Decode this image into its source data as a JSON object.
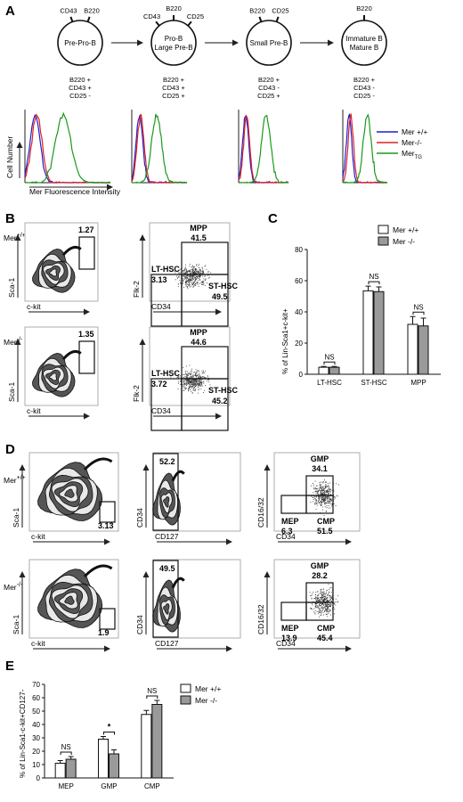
{
  "panelA": {
    "letter": "A",
    "stages": [
      {
        "name_lines": [
          "Pre-Pro-B"
        ],
        "top_markers": [
          "CD43",
          "B220"
        ],
        "phenotype": [
          "B220 +",
          "CD43 +",
          "CD25 -"
        ]
      },
      {
        "name_lines": [
          "Pro-B",
          "Large Pre-B"
        ],
        "top_markers": [
          "CD43",
          "B220",
          "CD25"
        ],
        "phenotype": [
          "B220 +",
          "CD43 +",
          "CD25 +"
        ]
      },
      {
        "name_lines": [
          "Small Pre-B"
        ],
        "top_markers": [
          "B220",
          "CD25"
        ],
        "phenotype": [
          "B220 +",
          "CD43 -",
          "CD25 +"
        ]
      },
      {
        "name_lines": [
          "Immature B",
          "Mature B"
        ],
        "top_markers": [
          "B220"
        ],
        "phenotype": [
          "B220 +",
          "CD43 -",
          "CD25 -"
        ]
      }
    ],
    "ylabel": "Cell Number",
    "xlabel": "Mer Fluorescence Intensity",
    "legend": [
      {
        "label": "Mer +/+",
        "color": "#1f1fd0"
      },
      {
        "label": "Mer-/-",
        "color": "#e02020"
      },
      {
        "label": "Mer",
        "sub": "TG",
        "color": "#1a9a1a"
      }
    ]
  },
  "panelB": {
    "letter": "B",
    "rows": [
      {
        "genotype": "Mer",
        "sup": "+/+",
        "lsk": "1.27",
        "mpp": "41.5",
        "lthsc": "3.13",
        "sthsc": "49.5"
      },
      {
        "genotype": "Mer",
        "sup": "-/-",
        "lsk": "1.35",
        "mpp": "44.6",
        "lthsc": "3.72",
        "sthsc": "45.2"
      }
    ],
    "gate_names": {
      "mpp": "MPP",
      "lthsc": "LT-HSC",
      "sthsc": "ST-HSC"
    },
    "axes": {
      "sca1": "Sca-1",
      "ckit": "c-kit",
      "flk2": "Flk-2",
      "cd34": "CD34"
    }
  },
  "panelC": {
    "letter": "C",
    "legend": [
      "Mer +/+",
      "Mer -/-"
    ],
    "sig": [
      "NS",
      "NS",
      "NS"
    ]
  },
  "panelD": {
    "letter": "D",
    "rows": [
      {
        "genotype": "Mer",
        "sup": "+/+",
        "lk": "3.13",
        "cd127neg": "52.2",
        "gmp": "34.1",
        "mep": "6.3",
        "cmp": "51.5"
      },
      {
        "genotype": "Mer",
        "sup": "-/-",
        "lk": "1.9",
        "cd127neg": "49.5",
        "gmp": "28.2",
        "mep": "13.9",
        "cmp": "45.4"
      }
    ],
    "gate_names": {
      "gmp": "GMP",
      "mep": "MEP",
      "cmp": "CMP"
    },
    "axes": {
      "sca1": "Sca-1",
      "ckit": "c-kit",
      "cd34": "CD34",
      "cd127": "CD127",
      "cd1632": "CD16/32"
    }
  },
  "panelE": {
    "letter": "E",
    "legend": [
      "Mer +/+",
      "Mer -/-"
    ],
    "sig": [
      "NS",
      "*",
      "NS"
    ]
  },
  "chart_data": [
    {
      "type": "bar",
      "panel": "C",
      "categories": [
        "LT-HSC",
        "ST-HSC",
        "MPP"
      ],
      "ylabel": "% of Lin-Sca1+c-kit+",
      "ylim": [
        0,
        80
      ],
      "yticks": [
        0,
        20,
        40,
        60,
        80
      ],
      "series": [
        {
          "name": "Mer +/+",
          "color": "#ffffff",
          "values": [
            4.5,
            53.5,
            32
          ],
          "errors": [
            0.5,
            3,
            5
          ]
        },
        {
          "name": "Mer -/-",
          "color": "#9a9a9a",
          "values": [
            4.5,
            53,
            31
          ],
          "errors": [
            0.5,
            3,
            5
          ]
        }
      ],
      "annotations": [
        "NS",
        "NS",
        "NS"
      ]
    },
    {
      "type": "bar",
      "panel": "E",
      "categories": [
        "MEP",
        "GMP",
        "CMP"
      ],
      "ylabel": "% of Lin-Sca1-c-kit+CD127-",
      "ylim": [
        0,
        70
      ],
      "yticks": [
        0,
        10,
        20,
        30,
        40,
        50,
        60,
        70
      ],
      "series": [
        {
          "name": "Mer +/+",
          "color": "#ffffff",
          "values": [
            11,
            29,
            47.5
          ],
          "errors": [
            2,
            2,
            3
          ]
        },
        {
          "name": "Mer -/-",
          "color": "#9a9a9a",
          "values": [
            14,
            18,
            55
          ],
          "errors": [
            2,
            3,
            3
          ]
        }
      ],
      "annotations": [
        "NS",
        "*",
        "NS"
      ]
    }
  ]
}
